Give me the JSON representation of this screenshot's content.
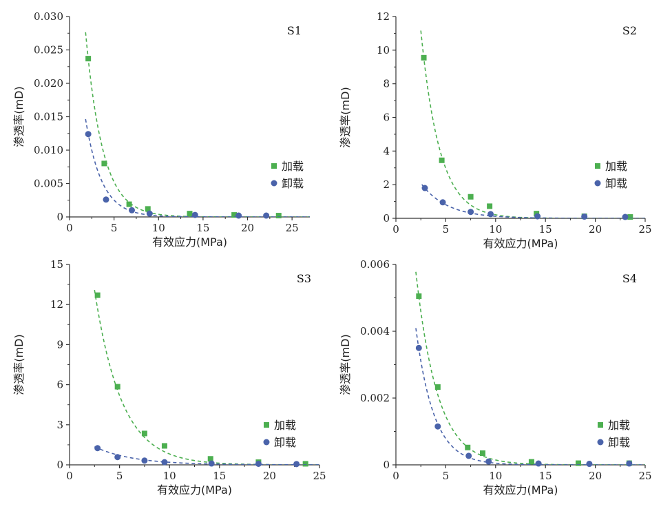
{
  "colors": {
    "loading": "#4CAF50",
    "unloading": "#4A63AA",
    "axis": "#333333"
  },
  "legend": {
    "loading_label": "加载",
    "unloading_label": "卸载"
  },
  "chart_data": [
    {
      "type": "scatter",
      "panel_label": "S1",
      "xlabel": "有效应力(MPa)",
      "ylabel": "渗透率(mD)",
      "xlim": [
        0,
        27
      ],
      "ylim": [
        0,
        0.03
      ],
      "xticks": [
        0,
        5,
        10,
        15,
        20,
        25
      ],
      "yticks": [
        0,
        0.005,
        0.01,
        0.015,
        0.02,
        0.025,
        0.03
      ],
      "ytick_labels": [
        "0",
        "0.005",
        "0.010",
        "0.015",
        "0.020",
        "0.025",
        "0.030"
      ],
      "legend_position": "right-middle",
      "series": [
        {
          "name": "加载",
          "marker": "square",
          "color": "#4CAF50",
          "x": [
            2.1,
            3.9,
            6.7,
            8.8,
            13.5,
            18.5,
            23.5
          ],
          "y": [
            0.0237,
            0.008,
            0.0019,
            0.0012,
            0.0005,
            0.0003,
            0.0002
          ],
          "fit": {
            "type": "exponential",
            "a": 0.0705,
            "b": 0.52
          }
        },
        {
          "name": "卸载",
          "marker": "circle",
          "color": "#4A63AA",
          "x": [
            2.1,
            4.1,
            7.0,
            9.0,
            14.1,
            19.0,
            22.1
          ],
          "y": [
            0.0124,
            0.0026,
            0.001,
            0.0005,
            0.0003,
            0.0002,
            0.0002
          ],
          "fit": {
            "type": "exponential",
            "a": 0.0394,
            "b": 0.55
          }
        }
      ]
    },
    {
      "type": "scatter",
      "panel_label": "S2",
      "xlabel": "有效应力(MPa)",
      "ylabel": "渗透率(mD)",
      "xlim": [
        0,
        25
      ],
      "ylim": [
        0,
        12
      ],
      "xticks": [
        0,
        5,
        10,
        15,
        20,
        25
      ],
      "yticks": [
        0,
        2,
        4,
        6,
        8,
        10,
        12
      ],
      "ytick_labels": [
        "0",
        "2",
        "4",
        "6",
        "8",
        "10",
        "12"
      ],
      "legend_position": "right-middle",
      "series": [
        {
          "name": "加载",
          "marker": "square",
          "color": "#4CAF50",
          "x": [
            2.8,
            4.6,
            7.5,
            9.4,
            14.1,
            18.9,
            23.5
          ],
          "y": [
            9.55,
            3.45,
            1.28,
            0.72,
            0.28,
            0.12,
            0.08
          ],
          "fit": {
            "type": "exponential",
            "a": 42.0,
            "b": 0.53
          }
        },
        {
          "name": "卸载",
          "marker": "circle",
          "color": "#4A63AA",
          "x": [
            2.9,
            4.7,
            7.5,
            9.5,
            14.2,
            18.9,
            23.0
          ],
          "y": [
            1.8,
            0.95,
            0.38,
            0.25,
            0.12,
            0.1,
            0.08
          ],
          "fit": {
            "type": "exponential",
            "a": 5.4,
            "b": 0.38
          }
        }
      ]
    },
    {
      "type": "scatter",
      "panel_label": "S3",
      "xlabel": "有效应力(MPa)",
      "ylabel": "渗透率(mD)",
      "xlim": [
        0,
        25
      ],
      "ylim": [
        0,
        15
      ],
      "xticks": [
        0,
        5,
        10,
        15,
        20,
        25
      ],
      "yticks": [
        0,
        3,
        6,
        9,
        12,
        15
      ],
      "ytick_labels": [
        "0",
        "3",
        "6",
        "9",
        "12",
        "15"
      ],
      "legend_position": "right-lower",
      "series": [
        {
          "name": "加载",
          "marker": "square",
          "color": "#4CAF50",
          "x": [
            2.8,
            4.8,
            7.5,
            9.5,
            14.1,
            18.9,
            23.6
          ],
          "y": [
            12.7,
            5.85,
            2.35,
            1.42,
            0.45,
            0.2,
            0.08
          ],
          "fit": {
            "type": "exponential",
            "a": 33.0,
            "b": 0.37
          }
        },
        {
          "name": "卸载",
          "marker": "circle",
          "color": "#4A63AA",
          "x": [
            2.8,
            4.8,
            7.5,
            9.5,
            14.2,
            18.9,
            22.7
          ],
          "y": [
            1.25,
            0.58,
            0.32,
            0.2,
            0.1,
            0.08,
            0.06
          ],
          "fit": {
            "type": "exponential",
            "a": 2.6,
            "b": 0.26
          }
        }
      ]
    },
    {
      "type": "scatter",
      "panel_label": "S4",
      "xlabel": "有效应力(MPa)",
      "ylabel": "渗透率(mD)",
      "xlim": [
        0,
        25
      ],
      "ylim": [
        0,
        0.006
      ],
      "xticks": [
        0,
        5,
        10,
        15,
        20,
        25
      ],
      "yticks": [
        0,
        0.002,
        0.004,
        0.006
      ],
      "ytick_labels": [
        "0",
        "0.002",
        "0.004",
        "0.006"
      ],
      "legend_position": "right-lower",
      "series": [
        {
          "name": "加载",
          "marker": "square",
          "color": "#4CAF50",
          "x": [
            2.3,
            4.2,
            7.2,
            8.7,
            13.6,
            18.3,
            23.4
          ],
          "y": [
            0.00505,
            0.00233,
            0.00052,
            0.00035,
            9e-05,
            5e-05,
            5e-05
          ],
          "fit": {
            "type": "exponential",
            "a": 0.0145,
            "b": 0.46
          }
        },
        {
          "name": "卸载",
          "marker": "circle",
          "color": "#4A63AA",
          "x": [
            2.3,
            4.2,
            7.3,
            9.3,
            14.3,
            19.4,
            23.4
          ],
          "y": [
            0.0035,
            0.00115,
            0.00027,
            0.0001,
            4e-05,
            3e-05,
            4e-05
          ],
          "fit": {
            "type": "exponential",
            "a": 0.0123,
            "b": 0.55
          }
        }
      ]
    }
  ]
}
